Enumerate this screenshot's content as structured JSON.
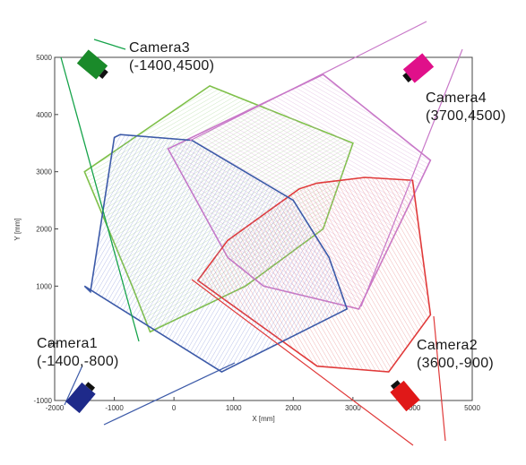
{
  "axes": {
    "xlabel": "X [mm]",
    "ylabel": "Y [mm]",
    "xlim": [
      -2000,
      5000
    ],
    "ylim": [
      -1000,
      5000
    ],
    "xticks": [
      -2000,
      -1000,
      0,
      1000,
      2000,
      3000,
      4000,
      5000
    ],
    "yticks": [
      -1000,
      0,
      1000,
      2000,
      3000,
      4000,
      5000
    ]
  },
  "cameras": [
    {
      "id": "camera1",
      "name": "Camera1",
      "coords": "(-1400,-800)",
      "color": "#1e2a8a",
      "outline": "#3c5aa8"
    },
    {
      "id": "camera2",
      "name": "Camera2",
      "coords": "(3600,-900)",
      "color": "#e01818",
      "outline": "#e03a3a"
    },
    {
      "id": "camera3",
      "name": "Camera3",
      "coords": "(-1400,4500)",
      "color": "#1a8a2a",
      "outline": "#7fc04a"
    },
    {
      "id": "camera4",
      "name": "Camera4",
      "coords": "(3700,4500)",
      "color": "#e0108a",
      "outline": "#c878c8"
    }
  ],
  "chart_data": {
    "type": "area",
    "xlabel": "X [mm]",
    "ylabel": "Y [mm]",
    "xlim": [
      -2000,
      5000
    ],
    "ylim": [
      -1000,
      5000
    ],
    "series": [
      {
        "name": "Camera1",
        "x": [
          -1400,
          -1000,
          -900,
          300,
          2000,
          2600,
          2900,
          800,
          -1500
        ],
        "y": [
          900,
          3600,
          3650,
          3550,
          2500,
          1500,
          600,
          -500,
          1000
        ]
      },
      {
        "name": "Camera2",
        "x": [
          2400,
          3200,
          4000,
          4300,
          3600,
          2400,
          400,
          900,
          2100
        ],
        "y": [
          2800,
          2900,
          2850,
          500,
          -500,
          -400,
          1100,
          1800,
          2700
        ]
      },
      {
        "name": "Camera3",
        "x": [
          -1500,
          600,
          3000,
          2500,
          1200,
          -400,
          -700
        ],
        "y": [
          3000,
          4500,
          3500,
          2000,
          1000,
          200,
          1000
        ]
      },
      {
        "name": "Camera4",
        "x": [
          -100,
          2500,
          4300,
          3100,
          1500,
          900,
          -100
        ],
        "y": [
          3400,
          4700,
          3200,
          600,
          1000,
          1500,
          3400
        ]
      }
    ]
  }
}
